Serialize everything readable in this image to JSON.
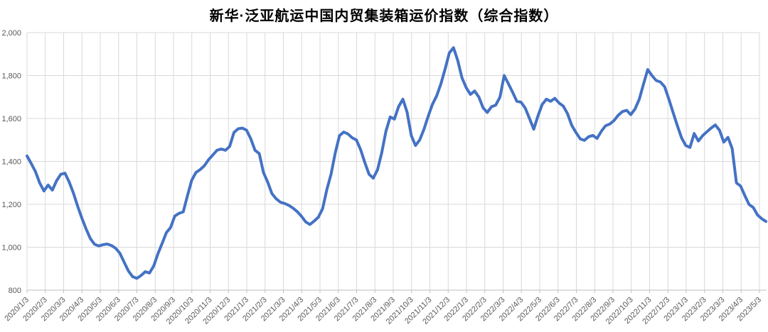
{
  "chart_data": {
    "type": "line",
    "title": "新华·泛亚航运中国内贸集装箱运价指数（综合指数）",
    "xlabel": "",
    "ylabel": "",
    "ylim": [
      800,
      2000
    ],
    "y_step": 200,
    "y_ticks": [
      "800",
      "1,000",
      "1,200",
      "1,400",
      "1,600",
      "1,800",
      "2,000"
    ],
    "grid": true,
    "legend": false,
    "line_color": "#4472C4",
    "grid_color": "#D9D9D9",
    "axis_color": "#BFBFBF",
    "tick_color": "#595959",
    "x_ticks": [
      "2020/1/3",
      "2020/2/3",
      "2020/3/3",
      "2020/4/3",
      "2020/5/3",
      "2020/6/3",
      "2020/7/3",
      "2020/8/3",
      "2020/9/3",
      "2020/10/3",
      "2020/11/3",
      "2020/12/3",
      "2021/1/3",
      "2021/2/3",
      "2021/3/3",
      "2021/4/3",
      "2021/5/3",
      "2021/6/3",
      "2021/7/3",
      "2021/8/3",
      "2021/9/3",
      "2021/10/3",
      "2021/11/3",
      "2021/12/3",
      "2022/1/3",
      "2022/2/3",
      "2022/3/3",
      "2022/4/3",
      "2022/5/3",
      "2022/6/3",
      "2022/7/3",
      "2022/8/3",
      "2022/9/3",
      "2022/10/3",
      "2022/11/3",
      "2022/12/3",
      "2023/1/3",
      "2023/2/3",
      "2023/3/3",
      "2023/4/3",
      "2023/5/3"
    ],
    "x_step_months": 0.2306,
    "series_name": "综合指数",
    "values": [
      1425,
      1390,
      1352,
      1300,
      1262,
      1290,
      1266,
      1310,
      1340,
      1345,
      1303,
      1252,
      1190,
      1135,
      1085,
      1040,
      1014,
      1006,
      1012,
      1015,
      1008,
      995,
      972,
      930,
      890,
      863,
      855,
      868,
      886,
      880,
      912,
      970,
      1018,
      1068,
      1092,
      1145,
      1158,
      1165,
      1240,
      1312,
      1348,
      1362,
      1380,
      1408,
      1430,
      1452,
      1458,
      1452,
      1470,
      1535,
      1552,
      1555,
      1545,
      1505,
      1452,
      1436,
      1348,
      1303,
      1250,
      1226,
      1210,
      1204,
      1195,
      1182,
      1166,
      1144,
      1118,
      1106,
      1122,
      1140,
      1180,
      1268,
      1340,
      1440,
      1520,
      1537,
      1528,
      1510,
      1500,
      1455,
      1395,
      1340,
      1322,
      1360,
      1440,
      1540,
      1607,
      1597,
      1655,
      1690,
      1630,
      1520,
      1474,
      1500,
      1550,
      1610,
      1665,
      1705,
      1760,
      1830,
      1905,
      1930,
      1870,
      1790,
      1744,
      1712,
      1728,
      1700,
      1650,
      1628,
      1655,
      1662,
      1700,
      1800,
      1762,
      1722,
      1680,
      1676,
      1648,
      1600,
      1550,
      1612,
      1665,
      1690,
      1680,
      1694,
      1672,
      1658,
      1622,
      1568,
      1535,
      1505,
      1498,
      1515,
      1521,
      1507,
      1540,
      1566,
      1574,
      1590,
      1615,
      1632,
      1638,
      1618,
      1645,
      1690,
      1760,
      1828,
      1800,
      1777,
      1770,
      1748,
      1690,
      1628,
      1568,
      1510,
      1474,
      1465,
      1530,
      1495,
      1520,
      1538,
      1555,
      1570,
      1545,
      1490,
      1512,
      1460,
      1300,
      1285,
      1240,
      1199,
      1185,
      1150,
      1133,
      1120
    ]
  }
}
